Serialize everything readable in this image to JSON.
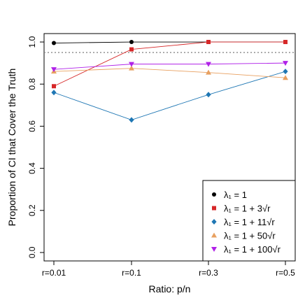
{
  "chart_data": {
    "type": "line",
    "xlabel": "Ratio: p/n",
    "ylabel": "Proportion of CI that Cover the Truth",
    "categories": [
      "r=0.01",
      "r=0.1",
      "r=0.3",
      "r=0.5"
    ],
    "ylim": [
      -0.04,
      1.04
    ],
    "yticks": [
      "0.0",
      "0.2",
      "0.4",
      "0.6",
      "0.8",
      "1.0"
    ],
    "reference_line": {
      "y": 0.95,
      "style": "dotted",
      "color": "#888888"
    },
    "grid": false,
    "legend_position": "bottom-right",
    "series": [
      {
        "name": "λ₁ = 1",
        "color": "#000000",
        "marker": "circle",
        "values": [
          0.995,
          1.0,
          1.0,
          1.0
        ]
      },
      {
        "name": "λ₁ = 1 + 3√r",
        "color": "#d62728",
        "marker": "square",
        "values": [
          0.79,
          0.965,
          1.0,
          1.0
        ]
      },
      {
        "name": "λ₁ = 1 + 11√r",
        "color": "#1f77b4",
        "marker": "diamond",
        "values": [
          0.76,
          0.63,
          0.75,
          0.86
        ]
      },
      {
        "name": "λ₁ = 1 + 50√r",
        "color": "#e8a060",
        "marker": "triangle-up",
        "values": [
          0.86,
          0.875,
          0.855,
          0.83
        ]
      },
      {
        "name": "λ₁ = 1 + 100√r",
        "color": "#b021e8",
        "marker": "triangle-down",
        "values": [
          0.87,
          0.895,
          0.895,
          0.9
        ]
      }
    ]
  }
}
